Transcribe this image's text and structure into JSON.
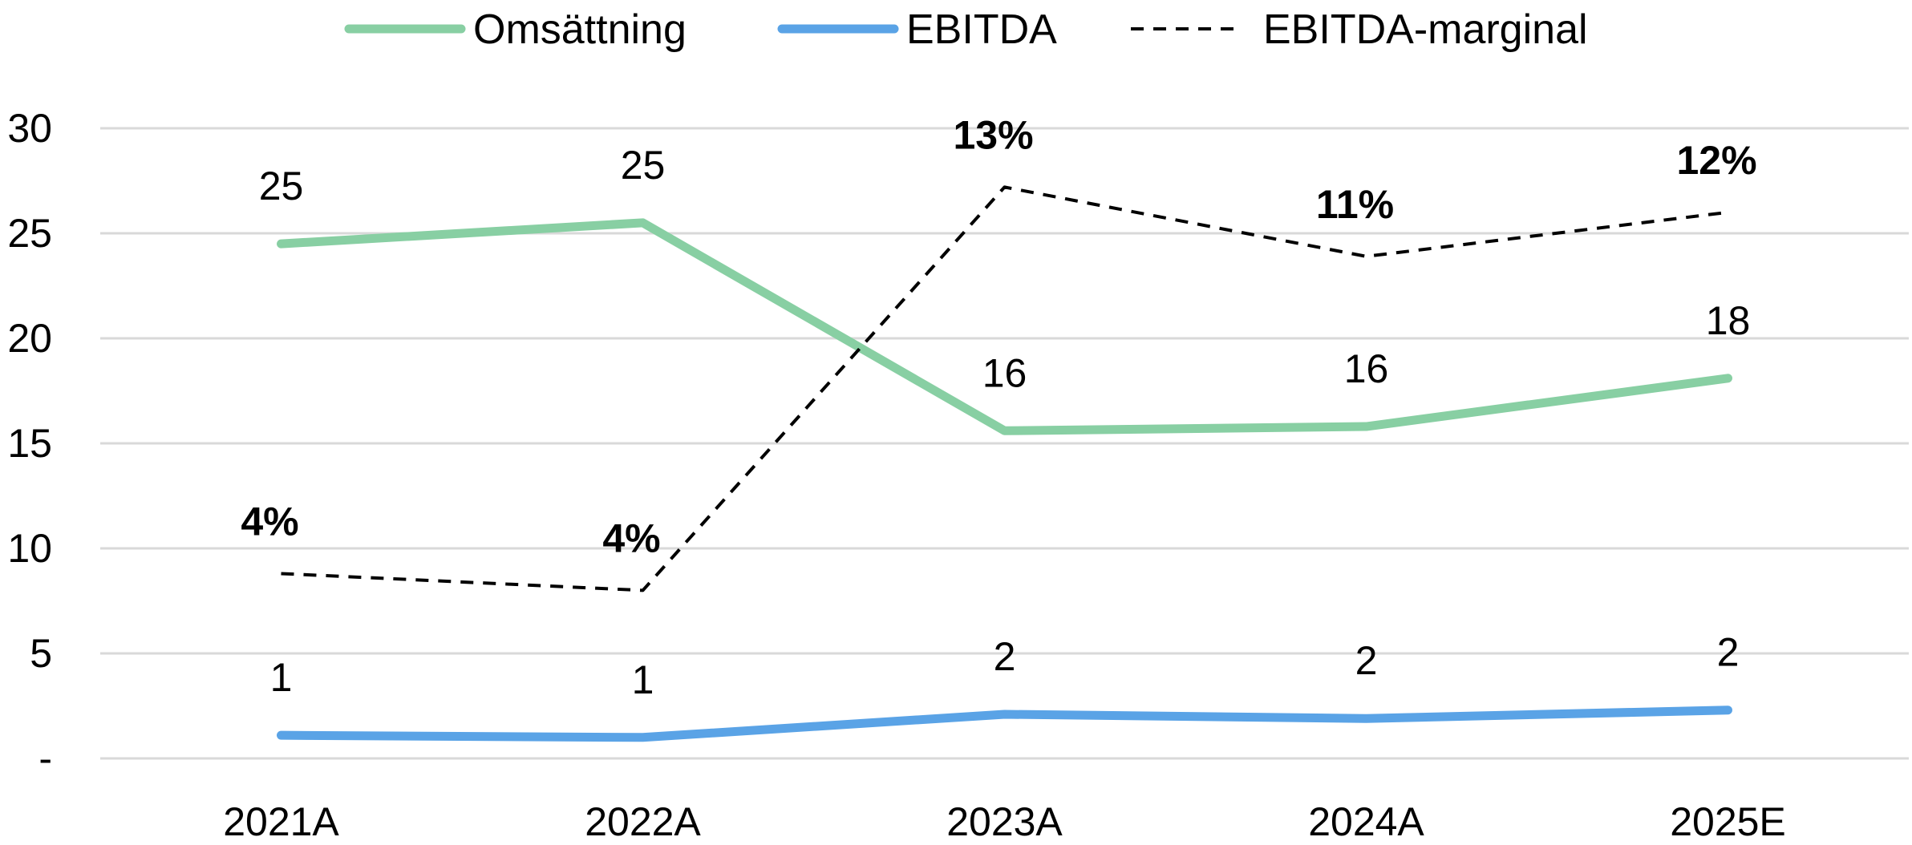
{
  "chart_data": {
    "type": "line",
    "title": "",
    "xlabel": "",
    "ylabel": "",
    "categories": [
      "2021A",
      "2022A",
      "2023A",
      "2024A",
      "2025E"
    ],
    "ylim": [
      0,
      30
    ],
    "yticks": [
      0,
      5,
      10,
      15,
      20,
      25,
      30
    ],
    "ytick_labels": [
      "-",
      "5",
      "10",
      "15",
      "20",
      "25",
      "30"
    ],
    "grid": true,
    "legend_position": "top",
    "series": [
      {
        "name": "Omsättning",
        "color": "#88cfa3",
        "style": "solid",
        "values": [
          24.5,
          25.5,
          15.6,
          15.8,
          18.1
        ],
        "labels": [
          "25",
          "25",
          "16",
          "16",
          "18"
        ]
      },
      {
        "name": "EBITDA",
        "color": "#5aa3e6",
        "style": "solid",
        "values": [
          1.1,
          1.0,
          2.1,
          1.9,
          2.3
        ],
        "labels": [
          "1",
          "1",
          "2",
          "2",
          "2"
        ]
      },
      {
        "name": "EBITDA-marginal",
        "color": "#000000",
        "style": "dashed",
        "values": [
          8.8,
          8.0,
          27.2,
          23.9,
          26.0
        ],
        "labels": [
          "4%",
          "4%",
          "13%",
          "11%",
          "12%"
        ]
      }
    ]
  }
}
